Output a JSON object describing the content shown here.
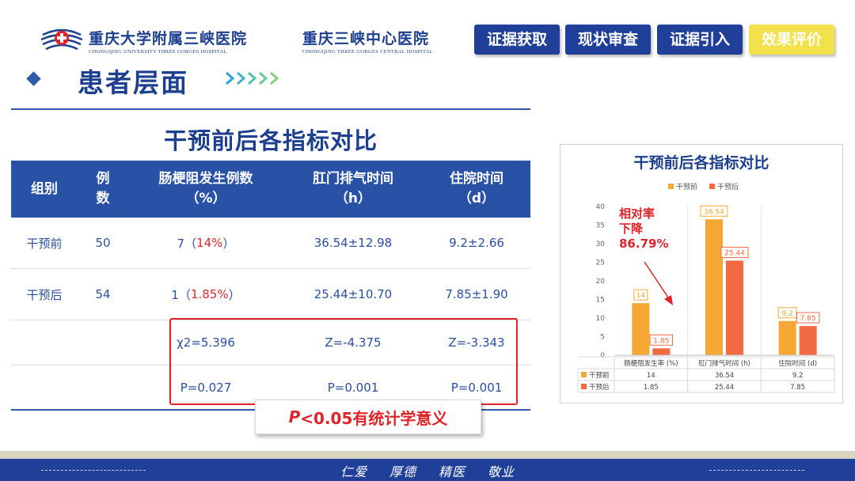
{
  "header": {
    "hospital1": {
      "cn": "重庆大学附属三峡医院",
      "en": "CHONGQING UNIVERSITY THREE GORGES HOSPITAL"
    },
    "hospital2": {
      "cn": "重庆三峡中心医院",
      "en": "CHONGQING THREE GORGES CENTRAL HOSPITAL"
    },
    "tabs": [
      {
        "label": "证据获取",
        "active": false
      },
      {
        "label": "现状审查",
        "active": false
      },
      {
        "label": "证据引入",
        "active": false
      },
      {
        "label": "效果评价",
        "active": true
      }
    ]
  },
  "section_title": "患者层面",
  "table": {
    "title": "干预前后各指标对比",
    "headers": {
      "group": "组别",
      "cases": [
        "例",
        "数"
      ],
      "ileus": [
        "肠梗阻发生例数",
        "（%）"
      ],
      "flatus": [
        "肛门排气时间",
        "（h）"
      ],
      "stay": [
        "住院时间",
        "（d）"
      ]
    },
    "rows": [
      {
        "group": "干预前",
        "cases": "50",
        "ileus_count": "7（",
        "ileus_pct": "14%",
        "ileus_close": "）",
        "flatus": "36.54±12.98",
        "stay": "9.2±2.66"
      },
      {
        "group": "干预后",
        "cases": "54",
        "ileus_count": "1（",
        "ileus_pct": "1.85%",
        "ileus_close": "）",
        "flatus": "25.44±10.70",
        "stay": "7.85±1.90"
      }
    ],
    "stats": {
      "ileus": "χ2=5.396",
      "flatus": "Z=-4.375",
      "stay": "Z=-3.343"
    },
    "pvalues": {
      "ileus": "P=0.027",
      "flatus": "P=0.001",
      "stay": "P=0.001"
    },
    "significance": {
      "p": "P",
      "rest": "<0.05有统计学意义"
    }
  },
  "chart_data": {
    "type": "bar",
    "title": "干预前后各指标对比",
    "categories": [
      "肠梗阻发生率 (%)",
      "肛门排气时间 (h)",
      "住院时间 (d)"
    ],
    "series": [
      {
        "name": "干预前",
        "values": [
          14,
          36.54,
          9.2
        ],
        "color": "#f5a733"
      },
      {
        "name": "干预后",
        "values": [
          1.85,
          25.44,
          7.85
        ],
        "color": "#f26b43"
      }
    ],
    "ylim": [
      0,
      40
    ],
    "yticks": [
      0,
      5,
      10,
      15,
      20,
      25,
      30,
      35,
      40
    ],
    "legend": "top",
    "grid": false,
    "data_table": true,
    "annotation": {
      "lines": [
        "相对率",
        "下降",
        "86.79%"
      ],
      "color": "#e0242a"
    }
  },
  "footer": {
    "motto": [
      "仁爱",
      "厚德",
      "精医",
      "敬业"
    ]
  }
}
